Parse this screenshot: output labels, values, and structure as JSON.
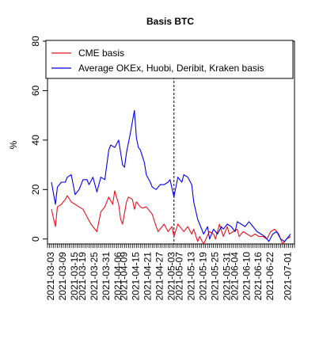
{
  "chart_data": {
    "type": "line",
    "title": "Basis BTC",
    "xlabel": "",
    "ylabel": "%",
    "ylim": [
      -2,
      80
    ],
    "yticks": [
      0,
      20,
      40,
      60,
      80
    ],
    "x_start": "2021-03-01",
    "x_end": "2021-07-04",
    "x_tick_labels": [
      "2021-03-03",
      "2021-03-09",
      "2021-03-15",
      "2021-03-19",
      "2021-03-25",
      "2021-03-31",
      "2021-04-06",
      "2021-04-09",
      "2021-04-15",
      "2021-04-21",
      "2021-04-27",
      "2021-05-03",
      "2021-05-07",
      "2021-05-13",
      "2021-05-19",
      "2021-05-25",
      "2021-05-31",
      "2021-06-04",
      "2021-06-10",
      "2021-06-16",
      "2021-06-22",
      "2021-07-01"
    ],
    "vline_date": "2021-05-04",
    "grid": false,
    "legend_position": "top-right",
    "series": [
      {
        "name": "CME basis",
        "color": "#e8131b",
        "points": [
          [
            "2021-03-03",
            12
          ],
          [
            "2021-03-05",
            5
          ],
          [
            "2021-03-06",
            13
          ],
          [
            "2021-03-08",
            14
          ],
          [
            "2021-03-10",
            16
          ],
          [
            "2021-03-11",
            17.5
          ],
          [
            "2021-03-13",
            15
          ],
          [
            "2021-03-15",
            14
          ],
          [
            "2021-03-17",
            13
          ],
          [
            "2021-03-19",
            12
          ],
          [
            "2021-03-21",
            9
          ],
          [
            "2021-03-23",
            6
          ],
          [
            "2021-03-24",
            5
          ],
          [
            "2021-03-26",
            3
          ],
          [
            "2021-03-28",
            11
          ],
          [
            "2021-03-30",
            13
          ],
          [
            "2021-04-01",
            17
          ],
          [
            "2021-04-03",
            14
          ],
          [
            "2021-04-04",
            19.5
          ],
          [
            "2021-04-06",
            14
          ],
          [
            "2021-04-07",
            8
          ],
          [
            "2021-04-08",
            6
          ],
          [
            "2021-04-10",
            15
          ],
          [
            "2021-04-11",
            17
          ],
          [
            "2021-04-13",
            16
          ],
          [
            "2021-04-14",
            12
          ],
          [
            "2021-04-15",
            15
          ],
          [
            "2021-04-17",
            13
          ],
          [
            "2021-04-18",
            12.5
          ],
          [
            "2021-04-20",
            13
          ],
          [
            "2021-04-22",
            11
          ],
          [
            "2021-04-23",
            10
          ],
          [
            "2021-04-25",
            5
          ],
          [
            "2021-04-26",
            3
          ],
          [
            "2021-04-28",
            5
          ],
          [
            "2021-04-29",
            6
          ],
          [
            "2021-05-01",
            3
          ],
          [
            "2021-05-03",
            5
          ],
          [
            "2021-05-04",
            1
          ],
          [
            "2021-05-06",
            6
          ],
          [
            "2021-05-08",
            4
          ],
          [
            "2021-05-09",
            3
          ],
          [
            "2021-05-11",
            5
          ],
          [
            "2021-05-13",
            2
          ],
          [
            "2021-05-14",
            4
          ],
          [
            "2021-05-16",
            -1
          ],
          [
            "2021-05-17",
            1
          ],
          [
            "2021-05-19",
            -2
          ],
          [
            "2021-05-21",
            1.5
          ],
          [
            "2021-05-22",
            3
          ],
          [
            "2021-05-24",
            2
          ],
          [
            "2021-05-25",
            0
          ],
          [
            "2021-05-27",
            6
          ],
          [
            "2021-05-29",
            1
          ],
          [
            "2021-05-31",
            5
          ],
          [
            "2021-06-01",
            2
          ],
          [
            "2021-06-03",
            3
          ],
          [
            "2021-06-05",
            4
          ],
          [
            "2021-06-06",
            1
          ],
          [
            "2021-06-08",
            3
          ],
          [
            "2021-06-10",
            2
          ],
          [
            "2021-06-12",
            1
          ],
          [
            "2021-06-14",
            2
          ],
          [
            "2021-06-16",
            1
          ],
          [
            "2021-06-18",
            1
          ],
          [
            "2021-06-20",
            0
          ],
          [
            "2021-06-22",
            3
          ],
          [
            "2021-06-24",
            4
          ],
          [
            "2021-06-26",
            2
          ],
          [
            "2021-06-28",
            -2
          ],
          [
            "2021-06-30",
            0
          ],
          [
            "2021-07-02",
            1
          ]
        ]
      },
      {
        "name": "Average OKEx, Huobi, Deribit, Kraken basis",
        "color": "#0000ee",
        "points": [
          [
            "2021-03-03",
            23
          ],
          [
            "2021-03-05",
            14
          ],
          [
            "2021-03-06",
            21
          ],
          [
            "2021-03-08",
            23
          ],
          [
            "2021-03-10",
            23
          ],
          [
            "2021-03-11",
            25
          ],
          [
            "2021-03-13",
            26
          ],
          [
            "2021-03-15",
            18
          ],
          [
            "2021-03-17",
            20
          ],
          [
            "2021-03-19",
            24
          ],
          [
            "2021-03-21",
            24
          ],
          [
            "2021-03-22",
            22
          ],
          [
            "2021-03-24",
            25
          ],
          [
            "2021-03-26",
            19
          ],
          [
            "2021-03-28",
            25
          ],
          [
            "2021-03-30",
            24
          ],
          [
            "2021-04-01",
            36
          ],
          [
            "2021-04-02",
            38
          ],
          [
            "2021-04-04",
            37
          ],
          [
            "2021-04-06",
            40
          ],
          [
            "2021-04-08",
            30
          ],
          [
            "2021-04-09",
            29
          ],
          [
            "2021-04-10",
            35
          ],
          [
            "2021-04-12",
            43
          ],
          [
            "2021-04-14",
            52
          ],
          [
            "2021-04-15",
            41
          ],
          [
            "2021-04-16",
            37
          ],
          [
            "2021-04-17",
            36
          ],
          [
            "2021-04-19",
            31
          ],
          [
            "2021-04-20",
            26
          ],
          [
            "2021-04-22",
            23
          ],
          [
            "2021-04-23",
            21
          ],
          [
            "2021-04-25",
            20
          ],
          [
            "2021-04-27",
            22
          ],
          [
            "2021-04-29",
            22
          ],
          [
            "2021-05-01",
            23
          ],
          [
            "2021-05-02",
            24
          ],
          [
            "2021-05-04",
            17
          ],
          [
            "2021-05-06",
            25
          ],
          [
            "2021-05-08",
            23
          ],
          [
            "2021-05-09",
            26
          ],
          [
            "2021-05-11",
            25
          ],
          [
            "2021-05-13",
            22
          ],
          [
            "2021-05-14",
            15
          ],
          [
            "2021-05-16",
            8
          ],
          [
            "2021-05-17",
            6
          ],
          [
            "2021-05-19",
            2
          ],
          [
            "2021-05-21",
            5
          ],
          [
            "2021-05-22",
            0
          ],
          [
            "2021-05-24",
            4
          ],
          [
            "2021-05-26",
            2
          ],
          [
            "2021-05-28",
            5
          ],
          [
            "2021-05-29",
            4
          ],
          [
            "2021-05-31",
            6
          ],
          [
            "2021-06-02",
            5
          ],
          [
            "2021-06-04",
            3
          ],
          [
            "2021-06-05",
            7
          ],
          [
            "2021-06-07",
            6
          ],
          [
            "2021-06-09",
            5
          ],
          [
            "2021-06-11",
            7
          ],
          [
            "2021-06-13",
            5
          ],
          [
            "2021-06-15",
            3
          ],
          [
            "2021-06-17",
            2
          ],
          [
            "2021-06-19",
            1
          ],
          [
            "2021-06-21",
            -1
          ],
          [
            "2021-06-23",
            2
          ],
          [
            "2021-06-25",
            3
          ],
          [
            "2021-06-27",
            0
          ],
          [
            "2021-06-29",
            -1
          ],
          [
            "2021-07-02",
            2
          ]
        ]
      }
    ]
  }
}
